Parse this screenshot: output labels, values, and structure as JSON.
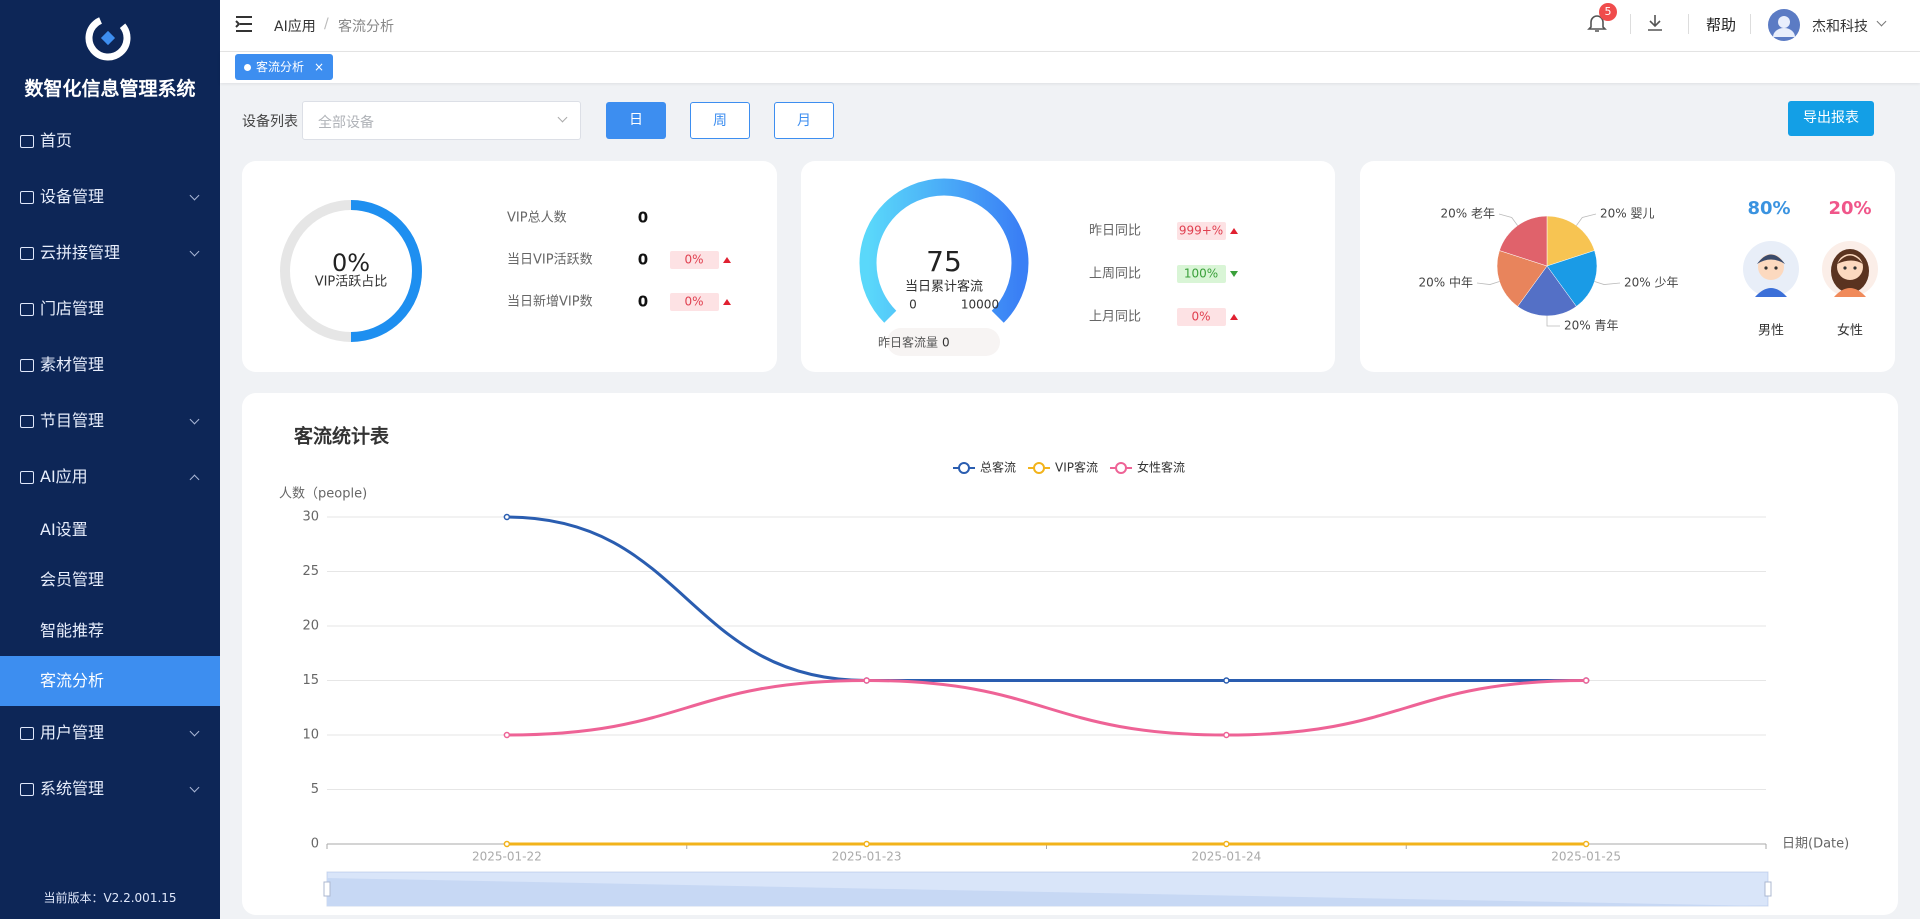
{
  "sidebar": {
    "title": "数智化信息管理系统",
    "menu": [
      "首页",
      "设备管理",
      "云拼接管理",
      "门店管理",
      "素材管理",
      "节目管理",
      "AI应用",
      "用户管理",
      "系统管理"
    ],
    "submenu": [
      "AI设置",
      "会员管理",
      "智能推荐",
      "客流分析"
    ],
    "version": "当前版本：V2.2.001.15"
  },
  "header": {
    "breadcrumb": [
      "AI应用",
      "客流分析"
    ],
    "notification_count": "5",
    "help": "帮助",
    "user": "杰和科技"
  },
  "tabs": [
    "客流分析"
  ],
  "toolbar": {
    "device_label": "设备列表",
    "device_placeholder": "全部设备",
    "periods": [
      "日",
      "周",
      "月"
    ],
    "export": "导出报表"
  },
  "vip_card": {
    "ratio": "0%",
    "ratio_label": "VIP活跃占比",
    "stats": [
      {
        "label": "VIP总人数",
        "value": "0"
      },
      {
        "label": "当日VIP活跃数",
        "value": "0",
        "change": "0%"
      },
      {
        "label": "当日新增VIP数",
        "value": "0",
        "change": "0%"
      }
    ]
  },
  "flow_card": {
    "value": "75",
    "label": "当日累计客流",
    "min": "0",
    "max": "10000",
    "yesterday_label": "昨日客流量",
    "yesterday": "0",
    "stats": [
      {
        "label": "昨日同比",
        "change": "999+%"
      },
      {
        "label": "上周同比",
        "change": "100%"
      },
      {
        "label": "上月同比",
        "change": "0%"
      }
    ]
  },
  "age_card": {
    "slices": [
      {
        "label": "20% 婴儿",
        "value": 20,
        "color": "#f7c452"
      },
      {
        "label": "20% 少年",
        "value": 20,
        "color": "#1a9be6"
      },
      {
        "label": "20% 青年",
        "value": 20,
        "color": "#5470c6"
      },
      {
        "label": "20% 中年",
        "value": 20,
        "color": "#e8845c"
      },
      {
        "label": "20% 老年",
        "value": 20,
        "color": "#e0626b"
      }
    ]
  },
  "gender_card": {
    "male_share": "80%",
    "male": "男性",
    "female_share": "20%",
    "female": "女性"
  },
  "chart_data": {
    "type": "line",
    "title": "客流统计表",
    "y_label": "人数（people)",
    "x_label": "日期(Date)",
    "categories": [
      "2025-01-22",
      "2025-01-23",
      "2025-01-24",
      "2025-01-25"
    ],
    "series": [
      {
        "name": "总客流",
        "color": "#2a5db0",
        "values": [
          30,
          15,
          15,
          15
        ]
      },
      {
        "name": "VIP客流",
        "color": "#f2b31b",
        "values": [
          0,
          0,
          0,
          0
        ]
      },
      {
        "name": "女性客流",
        "color": "#ee6396",
        "values": [
          10,
          15,
          10,
          15
        ]
      }
    ],
    "ylim": [
      0,
      30
    ],
    "yticks": [
      0,
      5,
      10,
      15,
      20,
      25,
      30
    ],
    "grid": true,
    "legend": "top"
  }
}
